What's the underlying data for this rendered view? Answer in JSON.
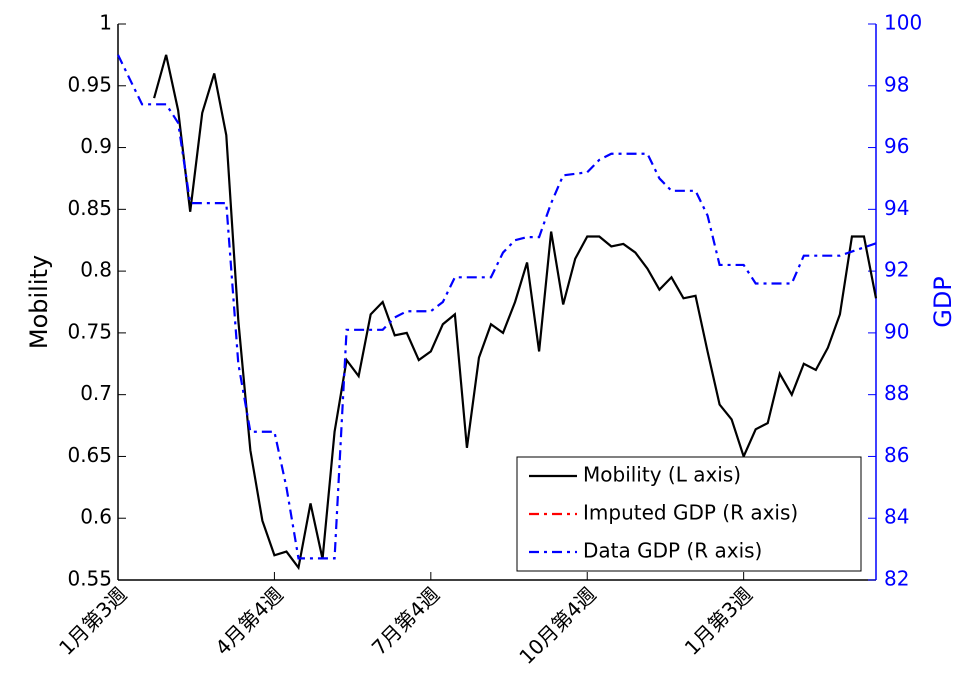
{
  "chart_data": {
    "type": "line",
    "y_label": "Mobility",
    "y2_label": "GDP",
    "xlim": [
      0,
      63
    ],
    "xticks": [
      {
        "value": 0,
        "label": "1月第3週"
      },
      {
        "value": 13,
        "label": "4月第4週"
      },
      {
        "value": 26,
        "label": "7月第4週"
      },
      {
        "value": 39,
        "label": "10月第4週"
      },
      {
        "value": 52,
        "label": "1月第3週"
      }
    ],
    "ylim": [
      0.55,
      1
    ],
    "yticks": [
      0.55,
      0.6,
      0.65,
      0.7,
      0.75,
      0.8,
      0.85,
      0.9,
      0.95,
      1
    ],
    "y2lim": [
      82,
      100
    ],
    "y2ticks": [
      82,
      84,
      86,
      88,
      90,
      92,
      94,
      96,
      98,
      100
    ],
    "y2color": "#0000ff",
    "legend": "lower right",
    "series": [
      {
        "name": "Mobility (L axis)",
        "color": "#000000",
        "dash": "solid",
        "axis": "y",
        "x": [
          3,
          4,
          5,
          6,
          7,
          8,
          9,
          10,
          11,
          12,
          13,
          14,
          15,
          16,
          17,
          18,
          19,
          20,
          21,
          22,
          23,
          24,
          25,
          26,
          27,
          28,
          29,
          30,
          31,
          32,
          33,
          34,
          35,
          36,
          37,
          38,
          39,
          40,
          41,
          42,
          43,
          44,
          45,
          46,
          47,
          48,
          49,
          50,
          51,
          52,
          53,
          54,
          55,
          56,
          57,
          58,
          59,
          60,
          61,
          62,
          63
        ],
        "values": [
          0.94,
          0.975,
          0.93,
          0.848,
          0.928,
          0.96,
          0.91,
          0.76,
          0.655,
          0.598,
          0.57,
          0.573,
          0.56,
          0.612,
          0.567,
          0.67,
          0.728,
          0.715,
          0.765,
          0.775,
          0.748,
          0.75,
          0.728,
          0.735,
          0.757,
          0.765,
          0.657,
          0.73,
          0.757,
          0.75,
          0.775,
          0.807,
          0.735,
          0.832,
          0.773,
          0.81,
          0.828,
          0.828,
          0.82,
          0.822,
          0.815,
          0.802,
          0.785,
          0.795,
          0.778,
          0.78,
          0.735,
          0.692,
          0.68,
          0.65,
          0.672,
          0.677,
          0.717,
          0.7,
          0.725,
          0.72,
          0.738,
          0.765,
          0.828,
          0.828,
          0.778
        ]
      },
      {
        "name": "Imputed GDP (R axis)",
        "color": "#ff0000",
        "dash": "dashdot",
        "axis": "y2",
        "x": [],
        "values": []
      },
      {
        "name": "Data GDP (R axis)",
        "color": "#0000ff",
        "dash": "dashdot",
        "axis": "y2",
        "x": [
          0,
          2,
          4,
          5,
          6,
          9,
          10,
          11,
          13,
          14,
          15,
          18,
          19,
          22,
          23,
          24,
          26,
          27,
          28,
          31,
          32,
          33,
          34,
          35,
          36,
          37,
          39,
          40,
          41,
          44,
          45,
          46,
          48,
          49,
          50,
          52,
          53,
          56,
          57,
          60,
          63
        ],
        "values": [
          99.0,
          97.4,
          97.4,
          96.8,
          94.2,
          94.2,
          89.0,
          86.8,
          86.8,
          85.0,
          82.7,
          82.7,
          90.1,
          90.1,
          90.5,
          90.7,
          90.7,
          91.0,
          91.8,
          91.8,
          92.6,
          93.0,
          93.1,
          93.1,
          94.2,
          95.1,
          95.2,
          95.6,
          95.8,
          95.8,
          95.0,
          94.6,
          94.6,
          93.8,
          92.2,
          92.2,
          91.6,
          91.6,
          92.5,
          92.5,
          92.9
        ]
      }
    ]
  }
}
